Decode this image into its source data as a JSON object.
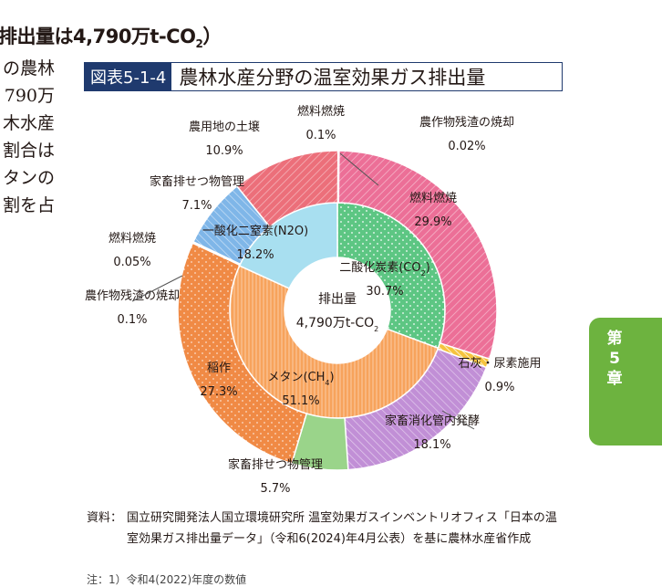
{
  "heading": {
    "text": "排出量は4,790万t-CO",
    "sub": "2",
    "close": "）"
  },
  "body_text": [
    "の農林",
    "790万",
    "木水産",
    "割合は",
    "タンの",
    "割を占"
  ],
  "figure": {
    "badge": "図表5-1-4",
    "title": "農林水産分野の温室効果ガス排出量"
  },
  "center": {
    "line1": "排出量",
    "line2": "4,790万t-CO",
    "line2_sub": "2"
  },
  "side_tab": {
    "lines": [
      "第",
      "5",
      "章"
    ]
  },
  "source": {
    "label": "資料：",
    "body": "国立研究開発法人国立環境研究所 温室効果ガスインベントリオフィス「日本の温室効果ガス排出量データ」（令和6(2024)年4月公表）を基に農林水産省作成"
  },
  "note": "注：1）令和4(2022)年度の数値",
  "colors": {
    "co2_inner": "#5dc683",
    "n2o_inner": "#a8dff0",
    "ch4_inner": "#f7a35c",
    "co2_outer": "#ec6f97",
    "n2o_outer": "#ec6f7a",
    "ch4_outer": "#f08a45",
    "lime": "#f5c33e",
    "digest": "#c18fd6",
    "manure": "#9ad48a",
    "soil": "#ec6f7a",
    "blue": "#7fb6e8"
  },
  "chart_data": {
    "type": "pie",
    "variant": "nested-donut",
    "unit": "%",
    "total_label": "4,790万t-CO2",
    "inner": [
      {
        "label": "二酸化炭素(CO2)",
        "value": 30.7
      },
      {
        "label": "メタン(CH4)",
        "value": 51.1
      },
      {
        "label": "一酸化二窒素(N2O)",
        "value": 18.2
      }
    ],
    "outer": [
      {
        "label": "農作物残渣の焼却",
        "value": 0.02,
        "group": "CO2",
        "value_label": "0.02%"
      },
      {
        "label": "燃料燃焼",
        "value": 29.9,
        "group": "CO2",
        "value_label": "29.9%"
      },
      {
        "label": "石灰・尿素施用",
        "value": 0.9,
        "group": "CO2",
        "value_label": "0.9%"
      },
      {
        "label": "家畜消化管内発酵",
        "value": 18.1,
        "group": "CH4",
        "value_label": "18.1%"
      },
      {
        "label": "家畜排せつ物管理",
        "value": 5.7,
        "group": "CH4",
        "value_label": "5.7%"
      },
      {
        "label": "稲作",
        "value": 27.3,
        "group": "CH4",
        "value_label": "27.3%"
      },
      {
        "label": "農作物残渣の焼却",
        "value": 0.1,
        "group": "CH4",
        "value_label": "0.1%"
      },
      {
        "label": "燃料燃焼",
        "value": 0.05,
        "group": "CH4",
        "value_label": "0.05%"
      },
      {
        "label": "家畜排せつ物管理",
        "value": 7.1,
        "group": "N2O",
        "value_label": "7.1%"
      },
      {
        "label": "農用地の土壌",
        "value": 10.9,
        "group": "N2O",
        "value_label": "10.9%"
      },
      {
        "label": "燃料燃焼",
        "value": 0.1,
        "group": "N2O",
        "value_label": "0.1%"
      }
    ]
  }
}
